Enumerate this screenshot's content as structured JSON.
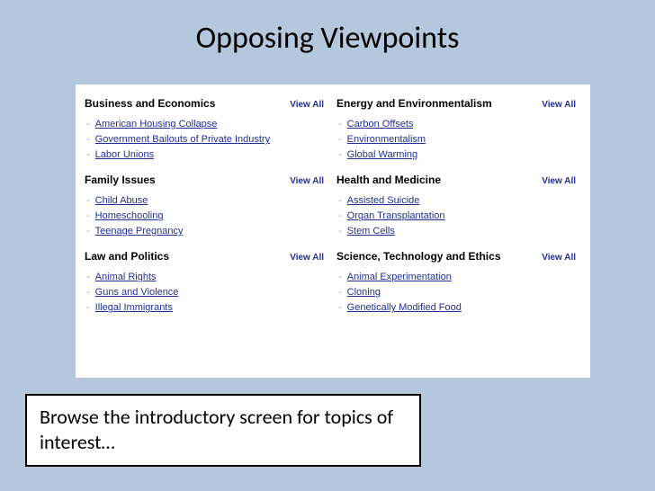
{
  "title": "Opposing Viewpoints",
  "view_all_label": "View All",
  "caption": "Browse the introductory screen for topics of interest…",
  "categories": [
    {
      "name": "Business and Economics",
      "topics": [
        "American Housing Collapse",
        "Government Bailouts of Private Industry",
        "Labor Unions"
      ]
    },
    {
      "name": "Energy and Environmentalism",
      "topics": [
        "Carbon Offsets",
        "Environmentalism",
        "Global Warming"
      ]
    },
    {
      "name": "Family Issues",
      "topics": [
        "Child Abuse",
        "Homeschooling",
        "Teenage Pregnancy"
      ]
    },
    {
      "name": "Health and Medicine",
      "topics": [
        "Assisted Suicide",
        "Organ Transplantation",
        "Stem Cells"
      ]
    },
    {
      "name": "Law and Politics",
      "topics": [
        "Animal Rights",
        "Guns and Violence",
        "Illegal Immigrants"
      ]
    },
    {
      "name": "Science, Technology and Ethics",
      "topics": [
        "Animal Experimentation",
        "Cloning",
        "Genetically Modified Food"
      ]
    }
  ],
  "colors": {
    "slide_bg": "#b4c7dc",
    "panel_bg": "#ffffff",
    "link_color": "#203191",
    "title_color": "#000000"
  }
}
